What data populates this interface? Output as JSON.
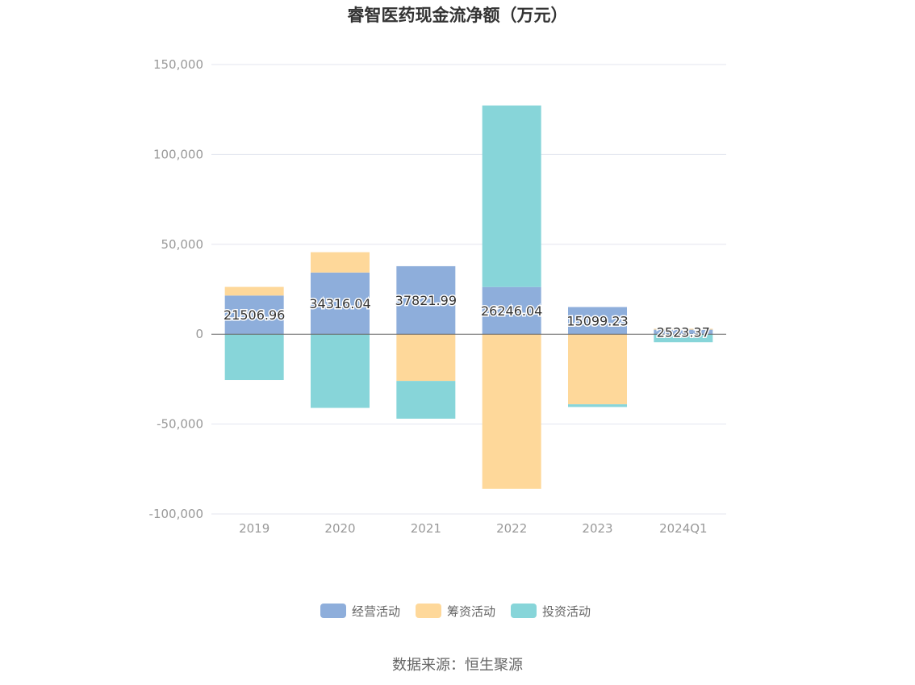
{
  "chart_data": {
    "type": "bar",
    "stacked": true,
    "title": "睿智医药现金流净额（万元）",
    "categories": [
      "2019",
      "2020",
      "2021",
      "2022",
      "2023",
      "2024Q1"
    ],
    "series": [
      {
        "name": "经营活动",
        "color": "#8eaedb",
        "values": [
          21506.96,
          34316.04,
          37821.99,
          26246.04,
          15099.23,
          2523.37
        ]
      },
      {
        "name": "筹资活动",
        "color": "#fed89a",
        "values": [
          4800,
          11300,
          -26000,
          -86000,
          -39000,
          500
        ]
      },
      {
        "name": "投资活动",
        "color": "#87d5d9",
        "values": [
          -25500,
          -41000,
          -21000,
          101000,
          -1500,
          -4500
        ]
      }
    ],
    "data_labels": [
      "21506.96",
      "34316.04",
      "37821.99",
      "26246.04",
      "15099.23",
      "2523.37"
    ],
    "ylim": [
      -100000,
      150000
    ],
    "yticks": [
      150000,
      100000,
      50000,
      0,
      -50000,
      -100000
    ],
    "ytick_labels": [
      "150,000",
      "100,000",
      "50,000",
      "0",
      "-50,000",
      "-100,000"
    ],
    "grid": true,
    "legend_position": "bottom"
  },
  "source_text": "数据来源：恒生聚源"
}
